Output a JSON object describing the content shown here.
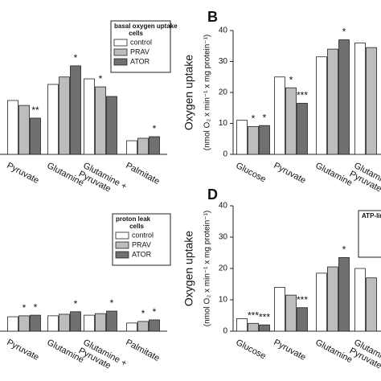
{
  "chart_data": [
    {
      "type": "bar",
      "legend_title": "basal oxygen uptake",
      "legend_subtitle": "cells",
      "categories": [
        "Pyruvate",
        "Glutamine",
        "Glutamine + Pyruvate",
        "Palmitate"
      ],
      "series": [
        {
          "name": "control",
          "color": "#ffffff",
          "values": [
            17.4,
            22.6,
            24.4,
            4.4
          ],
          "significance": [
            null,
            null,
            null,
            null
          ]
        },
        {
          "name": "PRAV",
          "color": "#bdbdbd",
          "values": [
            15.8,
            25,
            21.8,
            5.2
          ],
          "significance": [
            null,
            null,
            "*",
            null
          ]
        },
        {
          "name": "ATOR",
          "color": "#707070",
          "values": [
            11.7,
            28.6,
            18.7,
            5.7
          ],
          "significance": [
            "**",
            "*",
            null,
            "*"
          ]
        }
      ],
      "ylim": [
        0,
        40
      ]
    },
    {
      "type": "bar",
      "panel": "B",
      "ylabel": "Oxygen uptake",
      "ylabel_unit": "(nmol O₂ x min⁻¹ x mg protein⁻¹)",
      "categories": [
        "Glucose",
        "Pyruvate",
        "Glutamine",
        "Glutamine + Pyruvate"
      ],
      "series": [
        {
          "name": "control",
          "color": "#ffffff",
          "values": [
            11,
            25,
            31.5,
            36
          ],
          "significance": [
            null,
            null,
            null,
            null
          ]
        },
        {
          "name": "PRAV",
          "color": "#bdbdbd",
          "values": [
            9,
            21.5,
            34,
            34.5
          ],
          "significance": [
            "*",
            "*",
            null,
            null
          ]
        },
        {
          "name": "ATOR",
          "color": "#707070",
          "values": [
            9.3,
            16.5,
            37,
            null
          ],
          "significance": [
            "*",
            "***",
            "*",
            null
          ]
        }
      ],
      "ylim": [
        0,
        40
      ],
      "yticks": [
        0,
        10,
        20,
        30,
        40
      ]
    },
    {
      "type": "bar",
      "legend_title": "proton leak",
      "legend_subtitle": "cells",
      "categories": [
        "Pyruvate",
        "Glutamine",
        "Glutamine + Pyruvate",
        "Palmitate"
      ],
      "series": [
        {
          "name": "control",
          "color": "#ffffff",
          "values": [
            4.6,
            4.9,
            5.1,
            2.6
          ],
          "significance": [
            null,
            null,
            null,
            null
          ]
        },
        {
          "name": "PRAV",
          "color": "#bdbdbd",
          "values": [
            4.9,
            5.4,
            5.6,
            3.1
          ],
          "significance": [
            "*",
            null,
            null,
            "*"
          ]
        },
        {
          "name": "ATOR",
          "color": "#707070",
          "values": [
            5.1,
            6.2,
            6.4,
            3.6
          ],
          "significance": [
            "*",
            "*",
            "*",
            "*"
          ]
        }
      ],
      "ylim": [
        0,
        40
      ]
    },
    {
      "type": "bar",
      "panel": "D",
      "ylabel": "Oxygen uptake",
      "ylabel_unit": "(nmol O₂ x min⁻¹ x mg protein⁻¹)",
      "legend_title": "ATP-linked",
      "categories": [
        "Glucose",
        "Pyruvate",
        "Glutamine",
        "Glutamine + Pyruvate"
      ],
      "series": [
        {
          "name": "control",
          "color": "#ffffff",
          "values": [
            4,
            14,
            18.5,
            20
          ],
          "significance": [
            null,
            null,
            null,
            null
          ]
        },
        {
          "name": "PRAV",
          "color": "#bdbdbd",
          "values": [
            2.5,
            11.5,
            20.5,
            17
          ],
          "significance": [
            "***",
            null,
            null,
            null
          ]
        },
        {
          "name": "ATOR",
          "color": "#707070",
          "values": [
            2,
            7.5,
            23.5,
            null
          ],
          "significance": [
            "***",
            "***",
            "*",
            null
          ]
        }
      ],
      "ylim": [
        0,
        40
      ],
      "yticks": [
        0,
        10,
        20,
        30,
        40
      ]
    }
  ]
}
